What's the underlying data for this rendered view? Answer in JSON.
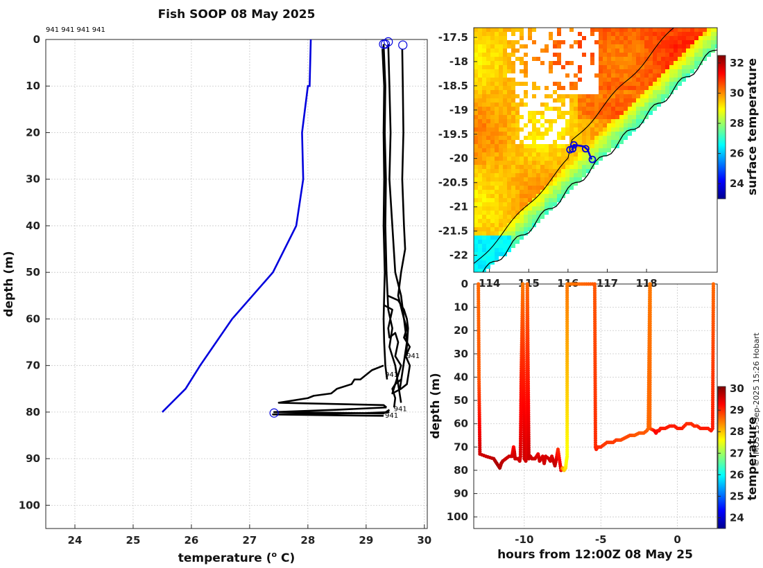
{
  "title": "Fish SOOP 08 May 2025",
  "header_ids": "941 941 941 941",
  "credit": "© IMOS 15-Sep-2025 15:26 Hobart",
  "colors": {
    "climatology": "#0000dd",
    "profile": "#000000",
    "start_marker": "#0000dd"
  },
  "chart_data": [
    {
      "type": "line",
      "name": "profile-plot",
      "xlabel": "temperature (",
      "xlabel_sup": "o",
      "xlabel_tail": " C)",
      "ylabel": "depth (m)",
      "xlim": [
        23.5,
        30.05
      ],
      "ylim": [
        105,
        0
      ],
      "xticks": [
        "24",
        "25",
        "26",
        "27",
        "28",
        "29",
        "30"
      ],
      "yticks": [
        "0",
        "10",
        "20",
        "30",
        "40",
        "50",
        "60",
        "70",
        "80",
        "90",
        "100"
      ],
      "climatology": {
        "name": "climatology",
        "temperature": [
          28.05,
          28.03,
          28.0,
          27.9,
          27.92,
          27.8,
          27.4,
          26.7,
          26.15,
          25.9,
          25.5
        ],
        "depth": [
          0,
          10,
          10,
          20,
          30,
          40,
          50,
          60,
          70,
          75,
          80
        ]
      },
      "profiles": [
        {
          "id": "941",
          "temperature": [
            29.28,
            29.31,
            29.3,
            29.31,
            29.3,
            29.32,
            29.3,
            29.31,
            29.33,
            29.35,
            29.36
          ],
          "depth": [
            2,
            10,
            20,
            30,
            40,
            50,
            60,
            65,
            70,
            72,
            73
          ]
        },
        {
          "id": "941",
          "temperature": [
            29.3,
            29.33,
            29.32,
            29.34,
            29.33,
            29.35,
            29.38,
            29.45,
            29.4,
            29.5,
            29.55,
            29.6
          ],
          "depth": [
            1,
            10,
            20,
            30,
            40,
            50,
            58,
            62,
            66,
            70,
            74,
            78
          ]
        },
        {
          "id": "941",
          "temperature": [
            29.38,
            29.4,
            29.42,
            29.4,
            29.45,
            29.5,
            29.6,
            29.65,
            29.7,
            29.65,
            29.75,
            29.68
          ],
          "depth": [
            1,
            10,
            20,
            30,
            40,
            50,
            55,
            60,
            62,
            64,
            66,
            68
          ]
        },
        {
          "id": "941",
          "temperature": [
            29.62,
            29.63,
            29.64,
            29.62,
            29.65,
            29.67,
            29.6,
            29.55,
            29.65,
            29.7,
            29.58
          ],
          "depth": [
            2,
            10,
            20,
            30,
            40,
            45,
            50,
            55,
            60,
            65,
            75
          ]
        },
        {
          "id": "941",
          "temperature": [
            29.37,
            29.55,
            29.65,
            29.7,
            29.72,
            29.7,
            29.68,
            29.75,
            29.7,
            29.6,
            29.45,
            29.5,
            29.6
          ],
          "depth": [
            55,
            56,
            58,
            60,
            62,
            66,
            68,
            70,
            74,
            75,
            76,
            74,
            73
          ]
        },
        {
          "id": "941",
          "temperature": [
            29.3,
            29.45,
            29.38,
            29.4,
            29.5,
            29.55,
            29.5,
            29.6,
            29.55,
            29.5,
            29.45,
            29.5,
            29.48
          ],
          "depth": [
            57,
            58,
            62,
            64,
            63,
            65,
            68,
            70,
            72,
            74,
            75,
            77,
            79
          ]
        },
        {
          "id": "941",
          "temperature": [
            29.3,
            29.1,
            29.0,
            28.9,
            28.8,
            28.75,
            28.5,
            28.4,
            28.1,
            28.0,
            27.5,
            29.3,
            29.35
          ],
          "depth": [
            70,
            71,
            72,
            73,
            73,
            74,
            75,
            76,
            76.5,
            77,
            78,
            78.5,
            79
          ]
        },
        {
          "id": "941",
          "temperature": [
            29.35,
            28.5,
            27.42,
            29.3,
            29.4
          ],
          "depth": [
            79,
            79.5,
            80,
            80.3,
            79.5
          ]
        },
        {
          "id": "941",
          "temperature": [
            29.4,
            29.0,
            28.0,
            27.4,
            28.5,
            29.3
          ],
          "depth": [
            80,
            80.2,
            80.4,
            80.5,
            80.7,
            80.8
          ]
        }
      ],
      "start_markers": [
        {
          "t": 29.3,
          "d": 1
        },
        {
          "t": 29.33,
          "d": 1
        },
        {
          "t": 29.38,
          "d": 0.5
        },
        {
          "t": 29.63,
          "d": 1.2
        },
        {
          "t": 27.42,
          "d": 80.2
        }
      ],
      "end_labels": [
        {
          "text": "941",
          "t": 29.67,
          "d": 67.8
        },
        {
          "text": "941",
          "t": 29.3,
          "d": 71.8
        },
        {
          "text": "941",
          "t": 29.45,
          "d": 79.2
        },
        {
          "text": "941",
          "t": 29.3,
          "d": 80.6
        }
      ]
    },
    {
      "type": "heatmap",
      "name": "surface-temperature-map",
      "xlim": [
        113.6,
        119.8
      ],
      "ylim": [
        -22.35,
        -17.3
      ],
      "yticks": [
        "-17.5",
        "-18",
        "-18.5",
        "-19",
        "-19.5",
        "-20",
        "-20.5",
        "-21",
        "-21.5",
        "-22"
      ],
      "xticks": [
        "114",
        "115",
        "116",
        "117",
        "118"
      ],
      "colorbar_label": "surface temperature",
      "colorbar_ticks": [
        "24",
        "26",
        "28",
        "30",
        "32"
      ],
      "colorbar_range": [
        23,
        32.5
      ],
      "track": [
        {
          "lon": 116.1,
          "lat": -19.83
        },
        {
          "lon": 116.15,
          "lat": -19.72
        },
        {
          "lon": 116.4,
          "lat": -19.75
        },
        {
          "lon": 116.5,
          "lat": -19.82
        },
        {
          "lon": 116.6,
          "lat": -20.02
        }
      ],
      "track_markers": [
        {
          "lon": 116.05,
          "lat": -19.82
        },
        {
          "lon": 116.12,
          "lat": -19.8
        },
        {
          "lon": 116.15,
          "lat": -19.72
        },
        {
          "lon": 116.45,
          "lat": -19.8
        },
        {
          "lon": 116.62,
          "lat": -20.02
        }
      ]
    },
    {
      "type": "scatter",
      "name": "time-depth-section",
      "xlabel": "hours from 12:00Z 08 May 25",
      "ylabel": "depth (m)",
      "xlim": [
        -13.3,
        2.6
      ],
      "ylim": [
        105,
        0
      ],
      "xticks": [
        "-10",
        "-5",
        "0"
      ],
      "yticks": [
        "0",
        "10",
        "20",
        "30",
        "40",
        "50",
        "60",
        "70",
        "80",
        "90",
        "100"
      ],
      "colorbar_label": "temperature",
      "colorbar_ticks": [
        "24",
        "25",
        "26",
        "27",
        "28",
        "29",
        "30"
      ],
      "colorbar_range": [
        23.5,
        30.1
      ],
      "path_hours": [
        -13.0,
        -12.96,
        -12.9,
        -12.5,
        -12.0,
        -11.8,
        -11.6,
        -11.5,
        -11.4,
        -11.2,
        -11.0,
        -10.8,
        -10.75,
        -10.7,
        -10.65,
        -10.6,
        -10.4,
        -10.3,
        -10.25,
        -10.2,
        -10.1,
        -10.05,
        -10.0,
        -9.9,
        -9.85,
        -9.8,
        -9.75,
        -9.7,
        -9.6,
        -9.5,
        -9.3,
        -9.1,
        -9.0,
        -8.8,
        -8.7,
        -8.6,
        -8.4,
        -8.3,
        -8.2,
        -8.0,
        -7.9,
        -7.8,
        -7.6,
        -7.5,
        -7.4,
        -7.3,
        -7.25,
        -7.2,
        -7.2,
        -5.4,
        -5.35,
        -5.3,
        -5.2,
        -5.0,
        -4.8,
        -4.6,
        -4.5,
        -4.2,
        -4.0,
        -3.7,
        -3.4,
        -3.1,
        -2.8,
        -2.5,
        -2.2,
        -2.0,
        -1.9,
        -1.8,
        -1.78,
        -1.8,
        -1.5,
        -1.4,
        -1.3,
        -1.2,
        -1.1,
        -1.0,
        -0.8,
        -0.5,
        -0.2,
        0.0,
        0.3,
        0.6,
        0.9,
        1.1,
        1.3,
        1.5,
        1.8,
        2.0,
        2.2,
        2.3,
        2.35,
        2.4
      ],
      "path_depths": [
        0,
        40,
        73,
        74,
        75,
        77,
        79,
        77,
        76,
        75,
        74,
        74,
        72,
        70,
        72,
        75,
        75,
        76,
        74,
        40,
        0,
        40,
        75,
        76,
        74,
        0,
        40,
        75,
        74,
        75,
        75,
        73,
        76,
        74,
        77,
        74,
        75,
        76,
        74,
        78,
        75,
        71,
        80,
        79,
        80,
        79,
        76,
        74,
        0,
        0,
        70,
        71,
        70,
        70,
        69,
        68,
        68,
        68,
        67,
        67,
        66,
        65,
        65,
        64,
        64,
        63,
        62,
        0,
        0,
        62,
        63,
        64,
        63,
        63,
        62,
        62,
        62,
        61,
        61,
        62,
        62,
        60,
        60,
        61,
        61,
        62,
        62,
        62,
        63,
        62,
        0,
        0
      ],
      "path_temps": [
        28.6,
        28.7,
        29.6,
        29.6,
        29.7,
        29.8,
        29.8,
        29.7,
        29.7,
        29.6,
        29.6,
        29.6,
        29.4,
        29.2,
        29.5,
        29.6,
        29.6,
        29.6,
        29.5,
        29.1,
        28.5,
        29.1,
        29.6,
        29.6,
        29.5,
        28.6,
        29.1,
        29.6,
        29.6,
        29.6,
        29.6,
        29.4,
        29.6,
        29.5,
        29.6,
        29.5,
        29.6,
        29.6,
        29.5,
        29.7,
        29.5,
        29.0,
        29.5,
        28.3,
        28.0,
        27.8,
        27.6,
        27.6,
        28.5,
        28.7,
        29.0,
        29.1,
        29.0,
        29.0,
        28.9,
        28.9,
        28.9,
        28.9,
        28.9,
        28.8,
        28.8,
        28.8,
        28.7,
        28.7,
        28.7,
        28.7,
        28.6,
        28.5,
        28.5,
        28.6,
        29.2,
        29.3,
        29.2,
        29.2,
        29.1,
        29.1,
        29.1,
        29.1,
        29.1,
        29.1,
        29.1,
        29.0,
        29.0,
        29.0,
        29.0,
        29.1,
        29.1,
        29.1,
        29.1,
        29.1,
        28.6,
        28.5
      ]
    }
  ]
}
